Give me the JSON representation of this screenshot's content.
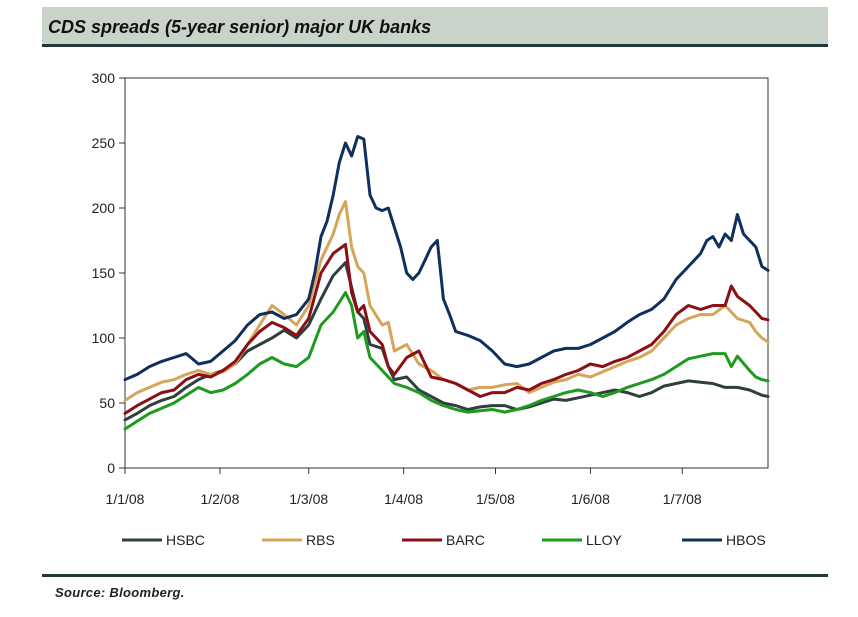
{
  "header": {
    "title": "CDS spreads (5-year senior) major UK banks"
  },
  "footer": {
    "source": "Source: Bloomberg."
  },
  "chart_data": {
    "type": "line",
    "title": "CDS spreads (5-year senior) major UK banks",
    "xlabel": "",
    "ylabel": "",
    "ylim": [
      0,
      300
    ],
    "yticks": [
      0,
      50,
      100,
      150,
      200,
      250,
      300
    ],
    "x_range_days": [
      0,
      210
    ],
    "xticks": [
      {
        "label": "1/1/08",
        "day": 0
      },
      {
        "label": "1/2/08",
        "day": 31
      },
      {
        "label": "1/3/08",
        "day": 60
      },
      {
        "label": "1/4/08",
        "day": 91
      },
      {
        "label": "1/5/08",
        "day": 121
      },
      {
        "label": "1/6/08",
        "day": 152
      },
      {
        "label": "1/7/08",
        "day": 182
      }
    ],
    "legend_position": "bottom",
    "series": [
      {
        "name": "HSBC",
        "color": "#2f3f3f",
        "x": [
          0,
          4,
          8,
          12,
          16,
          20,
          24,
          28,
          32,
          36,
          40,
          44,
          48,
          52,
          56,
          60,
          64,
          68,
          72,
          76,
          78,
          80,
          84,
          86,
          88,
          92,
          96,
          100,
          104,
          108,
          112,
          116,
          120,
          124,
          128,
          132,
          136,
          140,
          144,
          148,
          152,
          156,
          160,
          164,
          168,
          172,
          176,
          180,
          184,
          188,
          192,
          196,
          200,
          204,
          206,
          208,
          210
        ],
        "values": [
          37,
          42,
          48,
          52,
          55,
          62,
          68,
          72,
          75,
          80,
          90,
          95,
          100,
          106,
          100,
          110,
          130,
          148,
          158,
          120,
          115,
          95,
          92,
          78,
          68,
          70,
          60,
          55,
          50,
          48,
          45,
          47,
          48,
          48,
          45,
          47,
          50,
          53,
          52,
          54,
          56,
          58,
          60,
          58,
          55,
          58,
          63,
          65,
          67,
          66,
          65,
          62,
          62,
          60,
          58,
          56,
          55
        ]
      },
      {
        "name": "RBS",
        "color": "#d4a55a",
        "x": [
          0,
          4,
          8,
          12,
          16,
          20,
          24,
          28,
          32,
          36,
          40,
          44,
          48,
          52,
          56,
          60,
          64,
          68,
          70,
          72,
          74,
          76,
          78,
          80,
          84,
          86,
          88,
          92,
          96,
          100,
          104,
          108,
          112,
          116,
          120,
          124,
          128,
          132,
          136,
          140,
          144,
          148,
          152,
          156,
          160,
          164,
          168,
          172,
          176,
          180,
          184,
          188,
          192,
          196,
          200,
          204,
          206,
          208,
          210
        ],
        "values": [
          52,
          58,
          62,
          66,
          68,
          72,
          75,
          72,
          74,
          80,
          95,
          110,
          125,
          118,
          110,
          125,
          160,
          180,
          195,
          205,
          170,
          155,
          150,
          125,
          110,
          112,
          90,
          95,
          80,
          75,
          68,
          65,
          60,
          62,
          62,
          64,
          65,
          58,
          62,
          66,
          68,
          72,
          70,
          74,
          78,
          82,
          85,
          90,
          100,
          110,
          115,
          118,
          118,
          125,
          115,
          112,
          105,
          100,
          97
        ]
      },
      {
        "name": "BARC",
        "color": "#8b0f14",
        "x": [
          0,
          4,
          8,
          12,
          16,
          20,
          24,
          28,
          32,
          36,
          40,
          44,
          48,
          52,
          56,
          60,
          64,
          68,
          72,
          74,
          76,
          78,
          80,
          84,
          86,
          88,
          92,
          96,
          100,
          104,
          108,
          112,
          116,
          120,
          124,
          128,
          132,
          136,
          140,
          144,
          148,
          152,
          156,
          160,
          164,
          168,
          172,
          176,
          180,
          184,
          188,
          192,
          196,
          198,
          200,
          204,
          206,
          208,
          210
        ],
        "values": [
          42,
          48,
          53,
          58,
          60,
          68,
          72,
          70,
          75,
          82,
          95,
          105,
          112,
          108,
          102,
          115,
          150,
          165,
          172,
          135,
          120,
          125,
          105,
          95,
          78,
          72,
          85,
          90,
          70,
          68,
          65,
          60,
          55,
          58,
          58,
          62,
          60,
          65,
          68,
          72,
          75,
          80,
          78,
          82,
          85,
          90,
          95,
          105,
          118,
          125,
          122,
          125,
          125,
          140,
          132,
          125,
          120,
          115,
          114
        ]
      },
      {
        "name": "LLOY",
        "color": "#1f9a1f",
        "x": [
          0,
          4,
          8,
          12,
          16,
          20,
          24,
          28,
          32,
          36,
          40,
          44,
          48,
          52,
          56,
          60,
          64,
          68,
          72,
          74,
          76,
          78,
          80,
          84,
          86,
          88,
          92,
          96,
          100,
          104,
          108,
          112,
          116,
          120,
          124,
          128,
          132,
          136,
          140,
          144,
          148,
          152,
          156,
          160,
          164,
          168,
          172,
          176,
          180,
          184,
          188,
          192,
          196,
          198,
          200,
          204,
          206,
          208,
          210
        ],
        "values": [
          30,
          36,
          42,
          46,
          50,
          56,
          62,
          58,
          60,
          65,
          72,
          80,
          85,
          80,
          78,
          85,
          110,
          120,
          135,
          125,
          100,
          105,
          85,
          75,
          70,
          65,
          62,
          58,
          52,
          48,
          45,
          43,
          44,
          45,
          43,
          45,
          48,
          52,
          55,
          58,
          60,
          58,
          55,
          58,
          62,
          65,
          68,
          72,
          78,
          84,
          86,
          88,
          88,
          78,
          86,
          75,
          70,
          68,
          67
        ]
      },
      {
        "name": "HBOS",
        "color": "#0f2f5c",
        "x": [
          0,
          4,
          8,
          12,
          16,
          20,
          24,
          28,
          32,
          36,
          40,
          44,
          48,
          52,
          56,
          60,
          62,
          64,
          66,
          68,
          70,
          72,
          74,
          76,
          78,
          80,
          82,
          84,
          86,
          88,
          90,
          92,
          94,
          96,
          98,
          100,
          102,
          104,
          106,
          108,
          112,
          116,
          120,
          124,
          128,
          132,
          136,
          140,
          144,
          148,
          152,
          156,
          160,
          164,
          168,
          172,
          176,
          180,
          184,
          188,
          190,
          192,
          194,
          196,
          198,
          200,
          202,
          204,
          206,
          208,
          210
        ],
        "values": [
          68,
          72,
          78,
          82,
          85,
          88,
          80,
          82,
          90,
          98,
          110,
          118,
          120,
          115,
          118,
          130,
          150,
          178,
          190,
          210,
          235,
          250,
          240,
          255,
          253,
          210,
          200,
          198,
          200,
          185,
          170,
          150,
          145,
          150,
          160,
          170,
          175,
          130,
          118,
          105,
          102,
          98,
          90,
          80,
          78,
          80,
          85,
          90,
          92,
          92,
          95,
          100,
          105,
          112,
          118,
          122,
          130,
          145,
          155,
          165,
          175,
          178,
          170,
          180,
          175,
          195,
          180,
          175,
          170,
          155,
          152
        ]
      }
    ]
  }
}
